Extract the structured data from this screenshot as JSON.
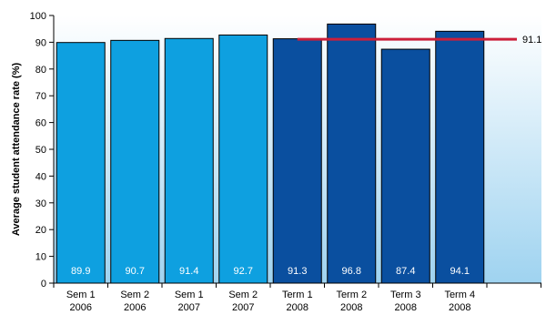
{
  "chart_data": {
    "type": "bar",
    "title": "",
    "xlabel": "",
    "ylabel": "Average student attendance rate (%)",
    "ylim": [
      0,
      100
    ],
    "yticks": [
      0,
      10,
      20,
      30,
      40,
      50,
      60,
      70,
      80,
      90,
      100
    ],
    "categories": [
      {
        "line1": "Sem 1",
        "line2": "2006"
      },
      {
        "line1": "Sem 2",
        "line2": "2006"
      },
      {
        "line1": "Sem 1",
        "line2": "2007"
      },
      {
        "line1": "Sem 2",
        "line2": "2007"
      },
      {
        "line1": "Term 1",
        "line2": "2008"
      },
      {
        "line1": "Term 2",
        "line2": "2008"
      },
      {
        "line1": "Term 3",
        "line2": "2008"
      },
      {
        "line1": "Term 4",
        "line2": "2008"
      }
    ],
    "values": [
      89.9,
      90.7,
      91.4,
      92.7,
      91.3,
      96.8,
      87.4,
      94.1
    ],
    "value_labels": [
      "89.9",
      "90.7",
      "91.4",
      "92.7",
      "91.3",
      "96.8",
      "87.4",
      "94.1"
    ],
    "bar_colors": [
      "#0ea0e0",
      "#0ea0e0",
      "#0ea0e0",
      "#0ea0e0",
      "#0a4f9f",
      "#0a4f9f",
      "#0a4f9f",
      "#0a4f9f"
    ],
    "reference_line": {
      "value": 91.1,
      "label": "91.1",
      "start_category": 4,
      "color": "#cc1f3a"
    },
    "colors": {
      "plot_background_top": "#ffffff",
      "plot_background_bottom": "#9fd3f0",
      "axis": "#000000",
      "grid": "#d9d9d9"
    },
    "grid": false,
    "legend": "none"
  }
}
